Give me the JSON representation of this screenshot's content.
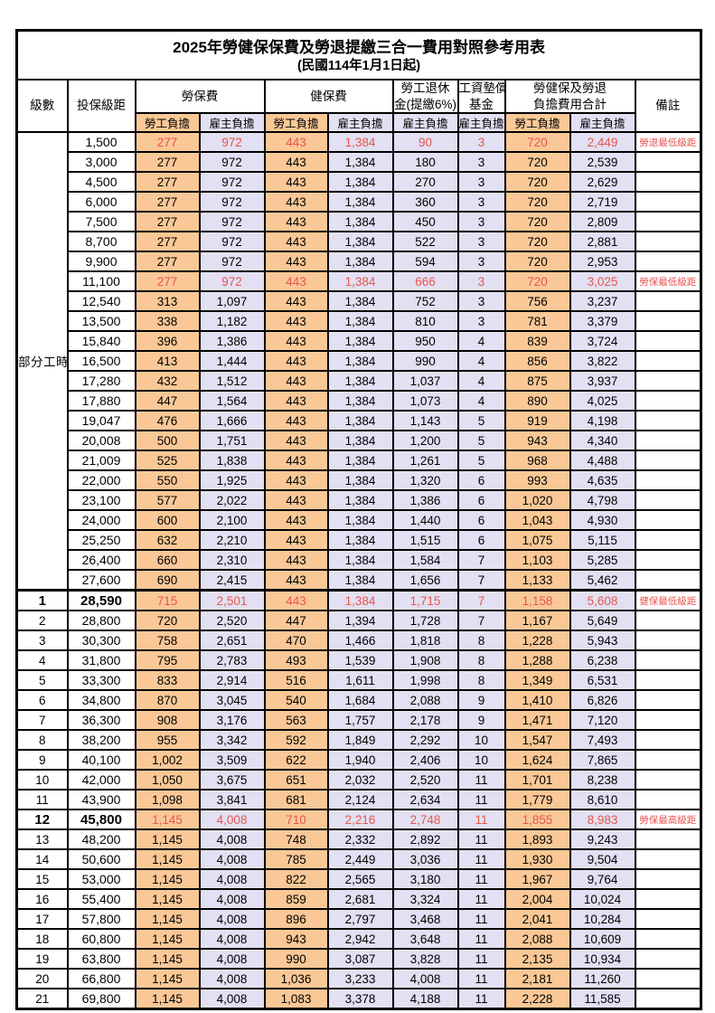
{
  "title": "2025年勞健保保費及勞退提繳三合一費用對照參考用表",
  "subtitle": "(民國114年1月1日起)",
  "colors": {
    "employee_bg": "#FAC896",
    "employer_bg": "#E2E0F2",
    "highlight_text": "#E8554F",
    "border": "#000000",
    "page_bg": "#FFFFFF"
  },
  "header": {
    "level": "級數",
    "bracket": "投保級距",
    "labor_insurance": "勞保費",
    "health_insurance": "健保費",
    "pension_line1": "勞工退休",
    "pension_line2": "金(提繳6%)",
    "wage_fund_line1": "工資墊償",
    "wage_fund_line2": "基金",
    "total_line1": "勞健保及勞退",
    "total_line2": "負擔費用合計",
    "remark": "備註",
    "employee": "勞工負擔",
    "employer": "雇主負擔"
  },
  "part_time_label": "部分工時",
  "part_time_row_span": 23,
  "rows": [
    {
      "br": "1,500",
      "v": [
        "277",
        "972",
        "443",
        "1,384",
        "90",
        "3",
        "720",
        "2,449"
      ],
      "rm": "勞退最低級距",
      "hl": true
    },
    {
      "br": "3,000",
      "v": [
        "277",
        "972",
        "443",
        "1,384",
        "180",
        "3",
        "720",
        "2,539"
      ]
    },
    {
      "br": "4,500",
      "v": [
        "277",
        "972",
        "443",
        "1,384",
        "270",
        "3",
        "720",
        "2,629"
      ]
    },
    {
      "br": "6,000",
      "v": [
        "277",
        "972",
        "443",
        "1,384",
        "360",
        "3",
        "720",
        "2,719"
      ]
    },
    {
      "br": "7,500",
      "v": [
        "277",
        "972",
        "443",
        "1,384",
        "450",
        "3",
        "720",
        "2,809"
      ]
    },
    {
      "br": "8,700",
      "v": [
        "277",
        "972",
        "443",
        "1,384",
        "522",
        "3",
        "720",
        "2,881"
      ]
    },
    {
      "br": "9,900",
      "v": [
        "277",
        "972",
        "443",
        "1,384",
        "594",
        "3",
        "720",
        "2,953"
      ]
    },
    {
      "br": "11,100",
      "v": [
        "277",
        "972",
        "443",
        "1,384",
        "666",
        "3",
        "720",
        "3,025"
      ],
      "rm": "勞保最低級距",
      "hl": true
    },
    {
      "br": "12,540",
      "v": [
        "313",
        "1,097",
        "443",
        "1,384",
        "752",
        "3",
        "756",
        "3,237"
      ]
    },
    {
      "br": "13,500",
      "v": [
        "338",
        "1,182",
        "443",
        "1,384",
        "810",
        "3",
        "781",
        "3,379"
      ]
    },
    {
      "br": "15,840",
      "v": [
        "396",
        "1,386",
        "443",
        "1,384",
        "950",
        "4",
        "839",
        "3,724"
      ]
    },
    {
      "br": "16,500",
      "v": [
        "413",
        "1,444",
        "443",
        "1,384",
        "990",
        "4",
        "856",
        "3,822"
      ]
    },
    {
      "br": "17,280",
      "v": [
        "432",
        "1,512",
        "443",
        "1,384",
        "1,037",
        "4",
        "875",
        "3,937"
      ]
    },
    {
      "br": "17,880",
      "v": [
        "447",
        "1,564",
        "443",
        "1,384",
        "1,073",
        "4",
        "890",
        "4,025"
      ]
    },
    {
      "br": "19,047",
      "v": [
        "476",
        "1,666",
        "443",
        "1,384",
        "1,143",
        "5",
        "919",
        "4,198"
      ]
    },
    {
      "br": "20,008",
      "v": [
        "500",
        "1,751",
        "443",
        "1,384",
        "1,200",
        "5",
        "943",
        "4,340"
      ]
    },
    {
      "br": "21,009",
      "v": [
        "525",
        "1,838",
        "443",
        "1,384",
        "1,261",
        "5",
        "968",
        "4,488"
      ]
    },
    {
      "br": "22,000",
      "v": [
        "550",
        "1,925",
        "443",
        "1,384",
        "1,320",
        "6",
        "993",
        "4,635"
      ]
    },
    {
      "br": "23,100",
      "v": [
        "577",
        "2,022",
        "443",
        "1,384",
        "1,386",
        "6",
        "1,020",
        "4,798"
      ]
    },
    {
      "br": "24,000",
      "v": [
        "600",
        "2,100",
        "443",
        "1,384",
        "1,440",
        "6",
        "1,043",
        "4,930"
      ]
    },
    {
      "br": "25,250",
      "v": [
        "632",
        "2,210",
        "443",
        "1,384",
        "1,515",
        "6",
        "1,075",
        "5,115"
      ]
    },
    {
      "br": "26,400",
      "v": [
        "660",
        "2,310",
        "443",
        "1,384",
        "1,584",
        "7",
        "1,103",
        "5,285"
      ]
    },
    {
      "br": "27,600",
      "v": [
        "690",
        "2,415",
        "443",
        "1,384",
        "1,656",
        "7",
        "1,133",
        "5,462"
      ]
    },
    {
      "lv": "1",
      "br": "28,590",
      "v": [
        "715",
        "2,501",
        "443",
        "1,384",
        "1,715",
        "7",
        "1,158",
        "5,608"
      ],
      "rm": "健保最低級距",
      "hl": true,
      "bd": true,
      "sep": true
    },
    {
      "lv": "2",
      "br": "28,800",
      "v": [
        "720",
        "2,520",
        "447",
        "1,394",
        "1,728",
        "7",
        "1,167",
        "5,649"
      ]
    },
    {
      "lv": "3",
      "br": "30,300",
      "v": [
        "758",
        "2,651",
        "470",
        "1,466",
        "1,818",
        "8",
        "1,228",
        "5,943"
      ]
    },
    {
      "lv": "4",
      "br": "31,800",
      "v": [
        "795",
        "2,783",
        "493",
        "1,539",
        "1,908",
        "8",
        "1,288",
        "6,238"
      ]
    },
    {
      "lv": "5",
      "br": "33,300",
      "v": [
        "833",
        "2,914",
        "516",
        "1,611",
        "1,998",
        "8",
        "1,349",
        "6,531"
      ]
    },
    {
      "lv": "6",
      "br": "34,800",
      "v": [
        "870",
        "3,045",
        "540",
        "1,684",
        "2,088",
        "9",
        "1,410",
        "6,826"
      ]
    },
    {
      "lv": "7",
      "br": "36,300",
      "v": [
        "908",
        "3,176",
        "563",
        "1,757",
        "2,178",
        "9",
        "1,471",
        "7,120"
      ]
    },
    {
      "lv": "8",
      "br": "38,200",
      "v": [
        "955",
        "3,342",
        "592",
        "1,849",
        "2,292",
        "10",
        "1,547",
        "7,493"
      ]
    },
    {
      "lv": "9",
      "br": "40,100",
      "v": [
        "1,002",
        "3,509",
        "622",
        "1,940",
        "2,406",
        "10",
        "1,624",
        "7,865"
      ]
    },
    {
      "lv": "10",
      "br": "42,000",
      "v": [
        "1,050",
        "3,675",
        "651",
        "2,032",
        "2,520",
        "11",
        "1,701",
        "8,238"
      ]
    },
    {
      "lv": "11",
      "br": "43,900",
      "v": [
        "1,098",
        "3,841",
        "681",
        "2,124",
        "2,634",
        "11",
        "1,779",
        "8,610"
      ]
    },
    {
      "lv": "12",
      "br": "45,800",
      "v": [
        "1,145",
        "4,008",
        "710",
        "2,216",
        "2,748",
        "11",
        "1,855",
        "8,983"
      ],
      "rm": "勞保最高級距",
      "hl": true,
      "bd": true
    },
    {
      "lv": "13",
      "br": "48,200",
      "v": [
        "1,145",
        "4,008",
        "748",
        "2,332",
        "2,892",
        "11",
        "1,893",
        "9,243"
      ]
    },
    {
      "lv": "14",
      "br": "50,600",
      "v": [
        "1,145",
        "4,008",
        "785",
        "2,449",
        "3,036",
        "11",
        "1,930",
        "9,504"
      ]
    },
    {
      "lv": "15",
      "br": "53,000",
      "v": [
        "1,145",
        "4,008",
        "822",
        "2,565",
        "3,180",
        "11",
        "1,967",
        "9,764"
      ]
    },
    {
      "lv": "16",
      "br": "55,400",
      "v": [
        "1,145",
        "4,008",
        "859",
        "2,681",
        "3,324",
        "11",
        "2,004",
        "10,024"
      ]
    },
    {
      "lv": "17",
      "br": "57,800",
      "v": [
        "1,145",
        "4,008",
        "896",
        "2,797",
        "3,468",
        "11",
        "2,041",
        "10,284"
      ]
    },
    {
      "lv": "18",
      "br": "60,800",
      "v": [
        "1,145",
        "4,008",
        "943",
        "2,942",
        "3,648",
        "11",
        "2,088",
        "10,609"
      ]
    },
    {
      "lv": "19",
      "br": "63,800",
      "v": [
        "1,145",
        "4,008",
        "990",
        "3,087",
        "3,828",
        "11",
        "2,135",
        "10,934"
      ]
    },
    {
      "lv": "20",
      "br": "66,800",
      "v": [
        "1,145",
        "4,008",
        "1,036",
        "3,233",
        "4,008",
        "11",
        "2,181",
        "11,260"
      ]
    },
    {
      "lv": "21",
      "br": "69,800",
      "v": [
        "1,145",
        "4,008",
        "1,083",
        "3,378",
        "4,188",
        "11",
        "2,228",
        "11,585"
      ]
    }
  ]
}
